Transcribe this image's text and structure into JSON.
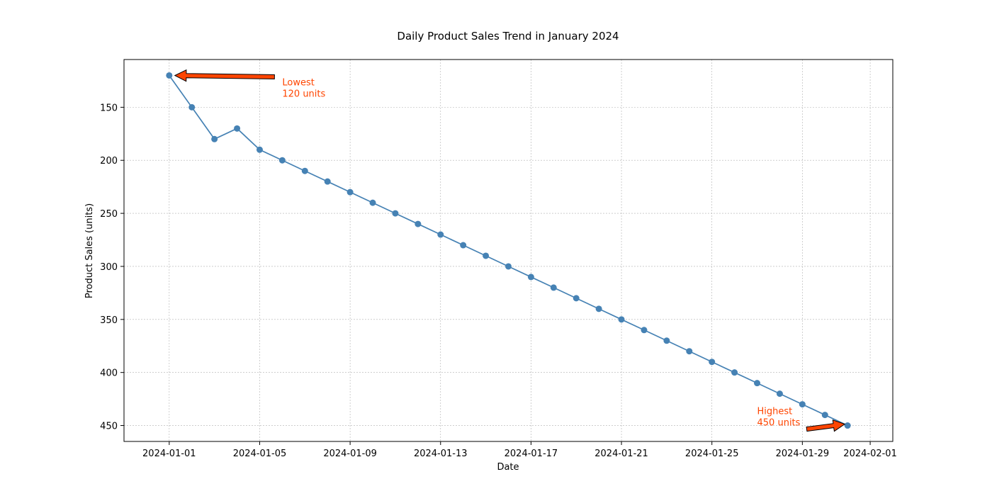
{
  "chart_data": {
    "type": "line",
    "title": "Daily Product Sales Trend in January 2024",
    "xlabel": "Date",
    "ylabel": "Product Sales (units)",
    "x_range": [
      "2023-12-30",
      "2024-02-02"
    ],
    "y_range": [
      465,
      105
    ],
    "y_inverted": true,
    "grid": true,
    "x_ticks": [
      "2024-01-01",
      "2024-01-05",
      "2024-01-09",
      "2024-01-13",
      "2024-01-17",
      "2024-01-21",
      "2024-01-25",
      "2024-01-29",
      "2024-02-01"
    ],
    "y_ticks": [
      150,
      200,
      250,
      300,
      350,
      400,
      450
    ],
    "series": [
      {
        "color": "#4682b4",
        "points": [
          {
            "x": "2024-01-01",
            "y": 120
          },
          {
            "x": "2024-01-02",
            "y": 150
          },
          {
            "x": "2024-01-03",
            "y": 180
          },
          {
            "x": "2024-01-04",
            "y": 170
          },
          {
            "x": "2024-01-05",
            "y": 190
          },
          {
            "x": "2024-01-06",
            "y": 200
          },
          {
            "x": "2024-01-07",
            "y": 210
          },
          {
            "x": "2024-01-08",
            "y": 220
          },
          {
            "x": "2024-01-09",
            "y": 230
          },
          {
            "x": "2024-01-10",
            "y": 240
          },
          {
            "x": "2024-01-11",
            "y": 250
          },
          {
            "x": "2024-01-12",
            "y": 260
          },
          {
            "x": "2024-01-13",
            "y": 270
          },
          {
            "x": "2024-01-14",
            "y": 280
          },
          {
            "x": "2024-01-15",
            "y": 290
          },
          {
            "x": "2024-01-16",
            "y": 300
          },
          {
            "x": "2024-01-17",
            "y": 310
          },
          {
            "x": "2024-01-18",
            "y": 320
          },
          {
            "x": "2024-01-19",
            "y": 330
          },
          {
            "x": "2024-01-20",
            "y": 340
          },
          {
            "x": "2024-01-21",
            "y": 350
          },
          {
            "x": "2024-01-22",
            "y": 360
          },
          {
            "x": "2024-01-23",
            "y": 370
          },
          {
            "x": "2024-01-24",
            "y": 380
          },
          {
            "x": "2024-01-25",
            "y": 390
          },
          {
            "x": "2024-01-26",
            "y": 400
          },
          {
            "x": "2024-01-27",
            "y": 410
          },
          {
            "x": "2024-01-28",
            "y": 420
          },
          {
            "x": "2024-01-29",
            "y": 430
          },
          {
            "x": "2024-01-30",
            "y": 440
          },
          {
            "x": "2024-01-31",
            "y": 450
          }
        ]
      }
    ],
    "annotations": [
      {
        "lines": [
          "Lowest",
          "120 units"
        ],
        "target": {
          "x": "2024-01-01",
          "y": 120
        },
        "text_at": {
          "x": "2024-01-06",
          "y": 120
        },
        "color": "#ff4500"
      },
      {
        "lines": [
          "Highest",
          "450 units"
        ],
        "target": {
          "x": "2024-01-31",
          "y": 450
        },
        "text_at": {
          "x": "2024-01-27",
          "y": 430
        },
        "color": "#ff4500"
      }
    ]
  }
}
